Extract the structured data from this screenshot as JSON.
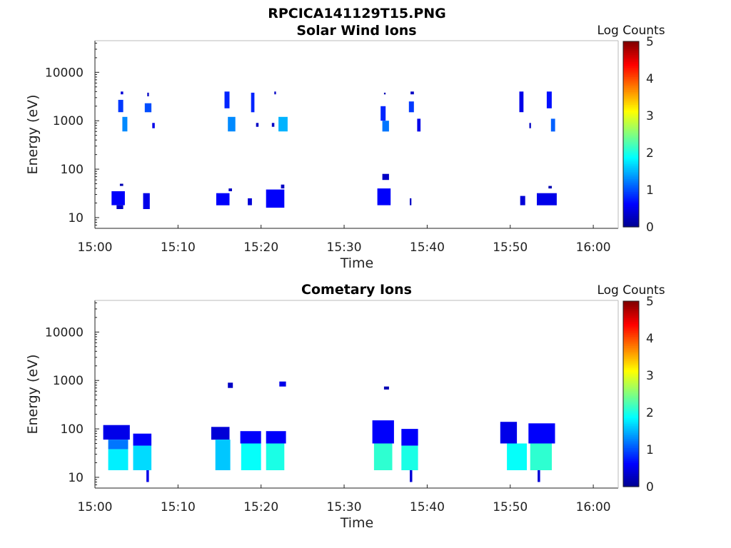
{
  "figure_title": "RPCICA141129T15.PNG",
  "colors": {
    "jet": [
      "#00008f",
      "#0000ff",
      "#0080ff",
      "#00ffff",
      "#80ff80",
      "#ffff00",
      "#ff8000",
      "#ff0000",
      "#800000"
    ],
    "axis": "#222222"
  },
  "chart_data": [
    {
      "type": "heatmap",
      "title": "Solar Wind Ions",
      "xlabel": "Time",
      "ylabel": "Energy (eV)",
      "xlim": [
        "15:00",
        "16:03"
      ],
      "xticks": [
        "15:00",
        "15:10",
        "15:20",
        "15:30",
        "15:40",
        "15:50",
        "16:00"
      ],
      "y_scale": "log",
      "ylim": [
        6,
        45000
      ],
      "yticks": [
        10,
        100,
        1000,
        10000
      ],
      "ytick_labels": [
        "10",
        "100",
        "1000",
        "10000"
      ],
      "colorbar": {
        "label": "Log Counts",
        "range": [
          0,
          5
        ],
        "ticks": [
          "0",
          "1",
          "2",
          "3",
          "4",
          "5"
        ]
      },
      "grid": false,
      "blocks": [
        {
          "t": [
            2.0,
            3.6
          ],
          "e": [
            18,
            35
          ],
          "v": 0.6
        },
        {
          "t": [
            2.6,
            3.4
          ],
          "e": [
            15,
            18
          ],
          "v": 0.3
        },
        {
          "t": [
            3.0,
            3.4
          ],
          "e": [
            45,
            50
          ],
          "v": 0.2
        },
        {
          "t": [
            2.8,
            3.4
          ],
          "e": [
            1500,
            2700
          ],
          "v": 0.9
        },
        {
          "t": [
            3.1,
            3.4
          ],
          "e": [
            3500,
            4000
          ],
          "v": 0.4
        },
        {
          "t": [
            3.3,
            3.9
          ],
          "e": [
            600,
            1200
          ],
          "v": 1.3
        },
        {
          "t": [
            6.0,
            6.8
          ],
          "e": [
            1500,
            2300
          ],
          "v": 1.0
        },
        {
          "t": [
            6.3,
            6.5
          ],
          "e": [
            3200,
            3800
          ],
          "v": 0.3
        },
        {
          "t": [
            6.9,
            7.2
          ],
          "e": [
            700,
            900
          ],
          "v": 0.5
        },
        {
          "t": [
            5.8,
            6.6
          ],
          "e": [
            15,
            32
          ],
          "v": 0.5
        },
        {
          "t": [
            14.6,
            16.2
          ],
          "e": [
            18,
            32
          ],
          "v": 0.6
        },
        {
          "t": [
            16.1,
            16.5
          ],
          "e": [
            35,
            40
          ],
          "v": 0.3
        },
        {
          "t": [
            15.6,
            16.2
          ],
          "e": [
            1800,
            4000
          ],
          "v": 0.8
        },
        {
          "t": [
            16.0,
            16.9
          ],
          "e": [
            600,
            1200
          ],
          "v": 1.3
        },
        {
          "t": [
            18.4,
            18.9
          ],
          "e": [
            18,
            25
          ],
          "v": 0.4
        },
        {
          "t": [
            18.8,
            19.2
          ],
          "e": [
            1500,
            3800
          ],
          "v": 0.8
        },
        {
          "t": [
            19.4,
            19.7
          ],
          "e": [
            750,
            900
          ],
          "v": 0.3
        },
        {
          "t": [
            20.6,
            22.8
          ],
          "e": [
            16,
            38
          ],
          "v": 0.6
        },
        {
          "t": [
            22.4,
            22.8
          ],
          "e": [
            40,
            48
          ],
          "v": 0.3
        },
        {
          "t": [
            21.6,
            21.8
          ],
          "e": [
            3500,
            4000
          ],
          "v": 0.3
        },
        {
          "t": [
            21.3,
            21.6
          ],
          "e": [
            750,
            900
          ],
          "v": 0.3
        },
        {
          "t": [
            22.1,
            23.2
          ],
          "e": [
            600,
            1200
          ],
          "v": 1.5
        },
        {
          "t": [
            34.0,
            35.6
          ],
          "e": [
            18,
            40
          ],
          "v": 0.6
        },
        {
          "t": [
            34.6,
            35.4
          ],
          "e": [
            60,
            80
          ],
          "v": 0.3
        },
        {
          "t": [
            34.4,
            35.0
          ],
          "e": [
            1000,
            2000
          ],
          "v": 0.8
        },
        {
          "t": [
            34.6,
            35.4
          ],
          "e": [
            600,
            1000
          ],
          "v": 1.2
        },
        {
          "t": [
            34.8,
            35.0
          ],
          "e": [
            3500,
            3800
          ],
          "v": 0.2
        },
        {
          "t": [
            37.8,
            38.4
          ],
          "e": [
            1500,
            2500
          ],
          "v": 0.9
        },
        {
          "t": [
            38.0,
            38.4
          ],
          "e": [
            3500,
            4000
          ],
          "v": 0.3
        },
        {
          "t": [
            38.8,
            39.2
          ],
          "e": [
            600,
            1100
          ],
          "v": 0.5
        },
        {
          "t": [
            37.9,
            38.1
          ],
          "e": [
            18,
            25
          ],
          "v": 0.3
        },
        {
          "t": [
            51.1,
            51.6
          ],
          "e": [
            1500,
            4000
          ],
          "v": 0.5
        },
        {
          "t": [
            52.3,
            52.5
          ],
          "e": [
            700,
            900
          ],
          "v": 0.3
        },
        {
          "t": [
            54.4,
            55.0
          ],
          "e": [
            1800,
            4000
          ],
          "v": 0.7
        },
        {
          "t": [
            54.9,
            55.4
          ],
          "e": [
            600,
            1100
          ],
          "v": 1.1
        },
        {
          "t": [
            51.2,
            51.8
          ],
          "e": [
            18,
            28
          ],
          "v": 0.4
        },
        {
          "t": [
            53.2,
            55.6
          ],
          "e": [
            18,
            32
          ],
          "v": 0.5
        },
        {
          "t": [
            54.6,
            55.0
          ],
          "e": [
            40,
            45
          ],
          "v": 0.2
        }
      ]
    },
    {
      "type": "heatmap",
      "title": "Cometary Ions",
      "xlabel": "Time",
      "ylabel": "Energy (eV)",
      "xlim": [
        "15:00",
        "16:03"
      ],
      "xticks": [
        "15:00",
        "15:10",
        "15:20",
        "15:30",
        "15:40",
        "15:50",
        "16:00"
      ],
      "y_scale": "log",
      "ylim": [
        6,
        45000
      ],
      "yticks": [
        10,
        100,
        1000,
        10000
      ],
      "ytick_labels": [
        "10",
        "100",
        "1000",
        "10000"
      ],
      "colorbar": {
        "label": "Log Counts",
        "range": [
          0,
          5
        ],
        "ticks": [
          "0",
          "1",
          "2",
          "3",
          "4",
          "5"
        ]
      },
      "grid": false,
      "blocks": [
        {
          "t": [
            1.0,
            4.2
          ],
          "e": [
            60,
            120
          ],
          "v": 0.5
        },
        {
          "t": [
            1.6,
            4.0
          ],
          "e": [
            38,
            60
          ],
          "v": 1.2
        },
        {
          "t": [
            1.6,
            4.0
          ],
          "e": [
            14,
            38
          ],
          "v": 1.8
        },
        {
          "t": [
            4.6,
            6.8
          ],
          "e": [
            45,
            80
          ],
          "v": 0.6
        },
        {
          "t": [
            4.6,
            6.8
          ],
          "e": [
            14,
            45
          ],
          "v": 1.7
        },
        {
          "t": [
            6.2,
            6.5
          ],
          "e": [
            8,
            14
          ],
          "v": 0.5
        },
        {
          "t": [
            14.0,
            16.2
          ],
          "e": [
            60,
            110
          ],
          "v": 0.4
        },
        {
          "t": [
            14.5,
            16.3
          ],
          "e": [
            14,
            60
          ],
          "v": 1.6
        },
        {
          "t": [
            16.0,
            16.6
          ],
          "e": [
            700,
            900
          ],
          "v": 0.3
        },
        {
          "t": [
            17.5,
            20.0
          ],
          "e": [
            50,
            90
          ],
          "v": 0.6
        },
        {
          "t": [
            17.6,
            20.0
          ],
          "e": [
            14,
            50
          ],
          "v": 1.9
        },
        {
          "t": [
            20.6,
            23.0
          ],
          "e": [
            50,
            90
          ],
          "v": 0.6
        },
        {
          "t": [
            20.6,
            22.8
          ],
          "e": [
            14,
            50
          ],
          "v": 2.0
        },
        {
          "t": [
            22.2,
            23.0
          ],
          "e": [
            750,
            950
          ],
          "v": 0.5
        },
        {
          "t": [
            33.4,
            36.0
          ],
          "e": [
            50,
            150
          ],
          "v": 0.6
        },
        {
          "t": [
            33.6,
            35.8
          ],
          "e": [
            14,
            50
          ],
          "v": 2.1
        },
        {
          "t": [
            34.8,
            35.4
          ],
          "e": [
            650,
            750
          ],
          "v": 0.2
        },
        {
          "t": [
            36.9,
            38.9
          ],
          "e": [
            45,
            100
          ],
          "v": 0.6
        },
        {
          "t": [
            36.9,
            38.9
          ],
          "e": [
            14,
            45
          ],
          "v": 2.0
        },
        {
          "t": [
            37.9,
            38.2
          ],
          "e": [
            8,
            14
          ],
          "v": 0.4
        },
        {
          "t": [
            48.8,
            50.8
          ],
          "e": [
            50,
            140
          ],
          "v": 0.5
        },
        {
          "t": [
            49.6,
            52.0
          ],
          "e": [
            14,
            50
          ],
          "v": 1.9
        },
        {
          "t": [
            52.2,
            55.4
          ],
          "e": [
            50,
            130
          ],
          "v": 0.6
        },
        {
          "t": [
            52.4,
            55.0
          ],
          "e": [
            14,
            50
          ],
          "v": 2.1
        },
        {
          "t": [
            53.3,
            53.6
          ],
          "e": [
            8,
            14
          ],
          "v": 0.4
        }
      ]
    }
  ]
}
